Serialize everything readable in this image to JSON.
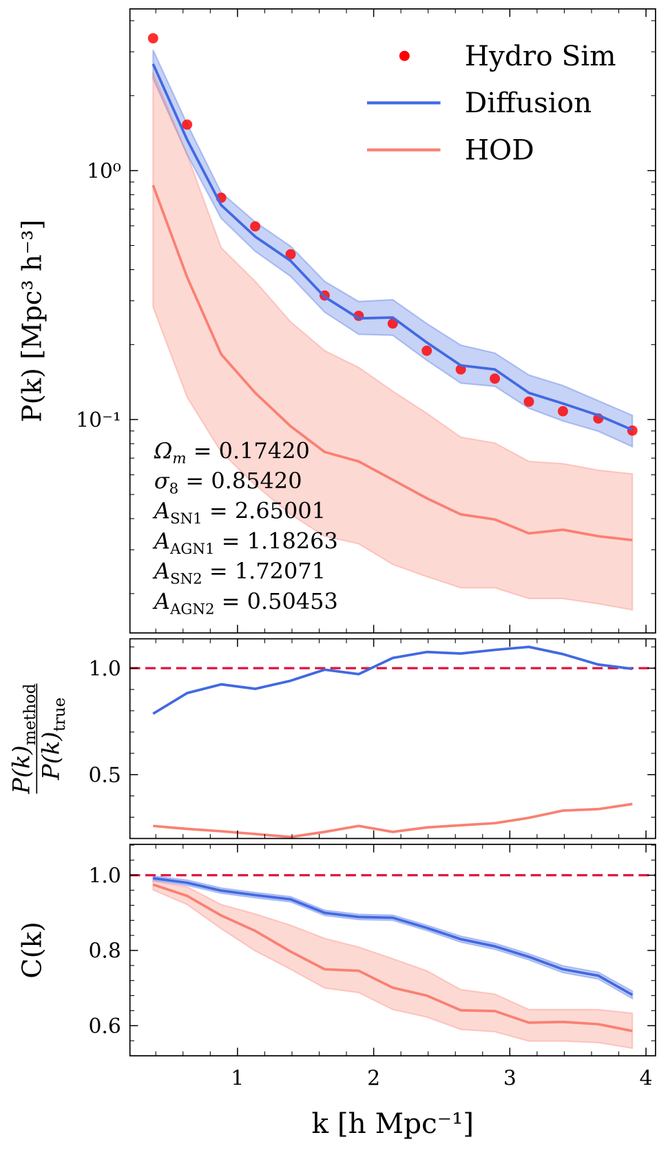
{
  "chart_data": [
    {
      "type": "line",
      "ylog": true,
      "ylabel": "P(k) [Mpc³ h⁻³]",
      "x": [
        0.38,
        0.63,
        0.88,
        1.13,
        1.39,
        1.64,
        1.89,
        2.14,
        2.39,
        2.64,
        2.89,
        3.14,
        3.39,
        3.65,
        3.9
      ],
      "xlim": [
        0.21,
        4.07
      ],
      "xticks": [
        1,
        2,
        3,
        4
      ],
      "xticklabels": false,
      "ylim": [
        0.0139,
        4.46
      ],
      "yticks": [
        {
          "value": 1,
          "label": "10⁰"
        },
        {
          "value": 0.1,
          "label": "10⁻¹"
        }
      ],
      "legend": "upper right",
      "series": [
        {
          "name": "Hydro Sim",
          "type": "scatter",
          "color": "#ff0000",
          "values": [
            3.4,
            1.53,
            0.778,
            0.597,
            0.461,
            0.315,
            0.261,
            0.243,
            0.189,
            0.159,
            0.146,
            0.118,
            0.108,
            0.101,
            0.0903
          ]
        },
        {
          "name": "Diffusion",
          "type": "line",
          "color": "#4169e1",
          "values": [
            2.68,
            1.33,
            0.727,
            0.543,
            0.434,
            0.311,
            0.255,
            0.257,
            0.204,
            0.165,
            0.159,
            0.128,
            0.116,
            0.104,
            0.0909
          ],
          "upper": [
            3.05,
            1.54,
            0.816,
            0.622,
            0.497,
            0.359,
            0.298,
            0.303,
            0.243,
            0.199,
            0.185,
            0.151,
            0.137,
            0.119,
            0.104
          ],
          "lower": [
            2.34,
            1.16,
            0.643,
            0.474,
            0.376,
            0.27,
            0.22,
            0.218,
            0.173,
            0.14,
            0.136,
            0.111,
            0.0987,
            0.0897,
            0.0778
          ]
        },
        {
          "name": "HOD",
          "type": "line",
          "color": "#fa8072",
          "values": [
            0.873,
            0.373,
            0.183,
            0.128,
            0.094,
            0.0741,
            0.0679,
            0.0573,
            0.0483,
            0.0416,
            0.0397,
            0.0349,
            0.0361,
            0.034,
            0.0328
          ],
          "upper": [
            2.48,
            1.16,
            0.49,
            0.359,
            0.247,
            0.189,
            0.162,
            0.13,
            0.106,
            0.085,
            0.0805,
            0.0679,
            0.0665,
            0.0626,
            0.0605
          ],
          "lower": [
            0.283,
            0.123,
            0.0741,
            0.0546,
            0.0416,
            0.034,
            0.0317,
            0.0262,
            0.0234,
            0.0211,
            0.0211,
            0.0191,
            0.0191,
            0.0182,
            0.0172
          ]
        }
      ],
      "annotations": [
        {
          "symbol": "Ω",
          "sub": "m",
          "text": " = 0.17420"
        },
        {
          "symbol": "σ",
          "sub": "8",
          "text": " = 0.85420"
        },
        {
          "symbol": "A",
          "sub": "SN1",
          "text": " = 2.65001"
        },
        {
          "symbol": "A",
          "sub": "AGN1",
          "text": " = 1.18263"
        },
        {
          "symbol": "A",
          "sub": "SN2",
          "text": " = 1.72071"
        },
        {
          "symbol": "A",
          "sub": "AGN2",
          "text": " = 0.50453"
        }
      ]
    },
    {
      "type": "line",
      "ylabel": {
        "numerator": "P(k)",
        "numerator_sub": "method",
        "denominator": "P(k)",
        "denominator_sub": "true"
      },
      "x": [
        0.38,
        0.63,
        0.88,
        1.13,
        1.39,
        1.64,
        1.89,
        2.14,
        2.39,
        2.64,
        2.89,
        3.14,
        3.39,
        3.65,
        3.9
      ],
      "xlim": [
        0.21,
        4.07
      ],
      "xticks": [
        1,
        2,
        3,
        4
      ],
      "xticklabels": false,
      "ylim": [
        0.2,
        1.138
      ],
      "yticks": [
        0.5,
        {
          "value": 1,
          "label": "1.0"
        }
      ],
      "hline": {
        "value": 1,
        "color": "#dc143c",
        "style": "dashed"
      },
      "series": [
        {
          "name": "Diffusion",
          "type": "line",
          "color": "#4169e1",
          "values": [
            0.786,
            0.883,
            0.924,
            0.903,
            0.941,
            0.993,
            0.972,
            1.048,
            1.076,
            1.069,
            1.086,
            1.1,
            1.066,
            1.017,
            0.997
          ]
        },
        {
          "name": "HOD",
          "type": "line",
          "color": "#fa8072",
          "values": [
            0.259,
            0.245,
            0.234,
            0.221,
            0.207,
            0.231,
            0.259,
            0.231,
            0.252,
            0.262,
            0.272,
            0.297,
            0.331,
            0.338,
            0.362
          ]
        }
      ]
    },
    {
      "type": "line",
      "ylabel": "C(k)",
      "xlabel": "k [h Mpc⁻¹]",
      "x": [
        0.38,
        0.63,
        0.88,
        1.13,
        1.39,
        1.64,
        1.89,
        2.14,
        2.39,
        2.64,
        2.89,
        3.14,
        3.39,
        3.65,
        3.9
      ],
      "xlim": [
        0.21,
        4.07
      ],
      "xticks": [
        1,
        2,
        3,
        4
      ],
      "xticklabels": true,
      "ylim": [
        0.52,
        1.082
      ],
      "yticks": [
        0.6,
        0.8,
        {
          "value": 1,
          "label": "1.0"
        }
      ],
      "hline": {
        "value": 1,
        "color": "#dc143c",
        "style": "dashed"
      },
      "series": [
        {
          "name": "Diffusion",
          "type": "line",
          "color": "#4169e1",
          "values": [
            0.992,
            0.98,
            0.959,
            0.947,
            0.936,
            0.9,
            0.889,
            0.887,
            0.86,
            0.83,
            0.811,
            0.783,
            0.75,
            0.733,
            0.682
          ],
          "upper": [
            0.998,
            0.987,
            0.966,
            0.954,
            0.943,
            0.907,
            0.896,
            0.894,
            0.867,
            0.838,
            0.819,
            0.791,
            0.759,
            0.742,
            0.692
          ],
          "lower": [
            0.986,
            0.973,
            0.952,
            0.94,
            0.929,
            0.893,
            0.882,
            0.88,
            0.853,
            0.822,
            0.803,
            0.775,
            0.741,
            0.724,
            0.672
          ]
        },
        {
          "name": "HOD",
          "type": "line",
          "color": "#fa8072",
          "values": [
            0.975,
            0.945,
            0.893,
            0.852,
            0.797,
            0.75,
            0.746,
            0.701,
            0.68,
            0.641,
            0.639,
            0.608,
            0.61,
            0.604,
            0.586
          ],
          "upper": [
            0.984,
            0.969,
            0.922,
            0.897,
            0.867,
            0.832,
            0.809,
            0.778,
            0.746,
            0.696,
            0.684,
            0.643,
            0.643,
            0.643,
            0.633
          ],
          "lower": [
            0.961,
            0.922,
            0.858,
            0.799,
            0.75,
            0.7,
            0.688,
            0.643,
            0.623,
            0.59,
            0.584,
            0.559,
            0.559,
            0.555,
            0.54
          ]
        }
      ]
    }
  ]
}
